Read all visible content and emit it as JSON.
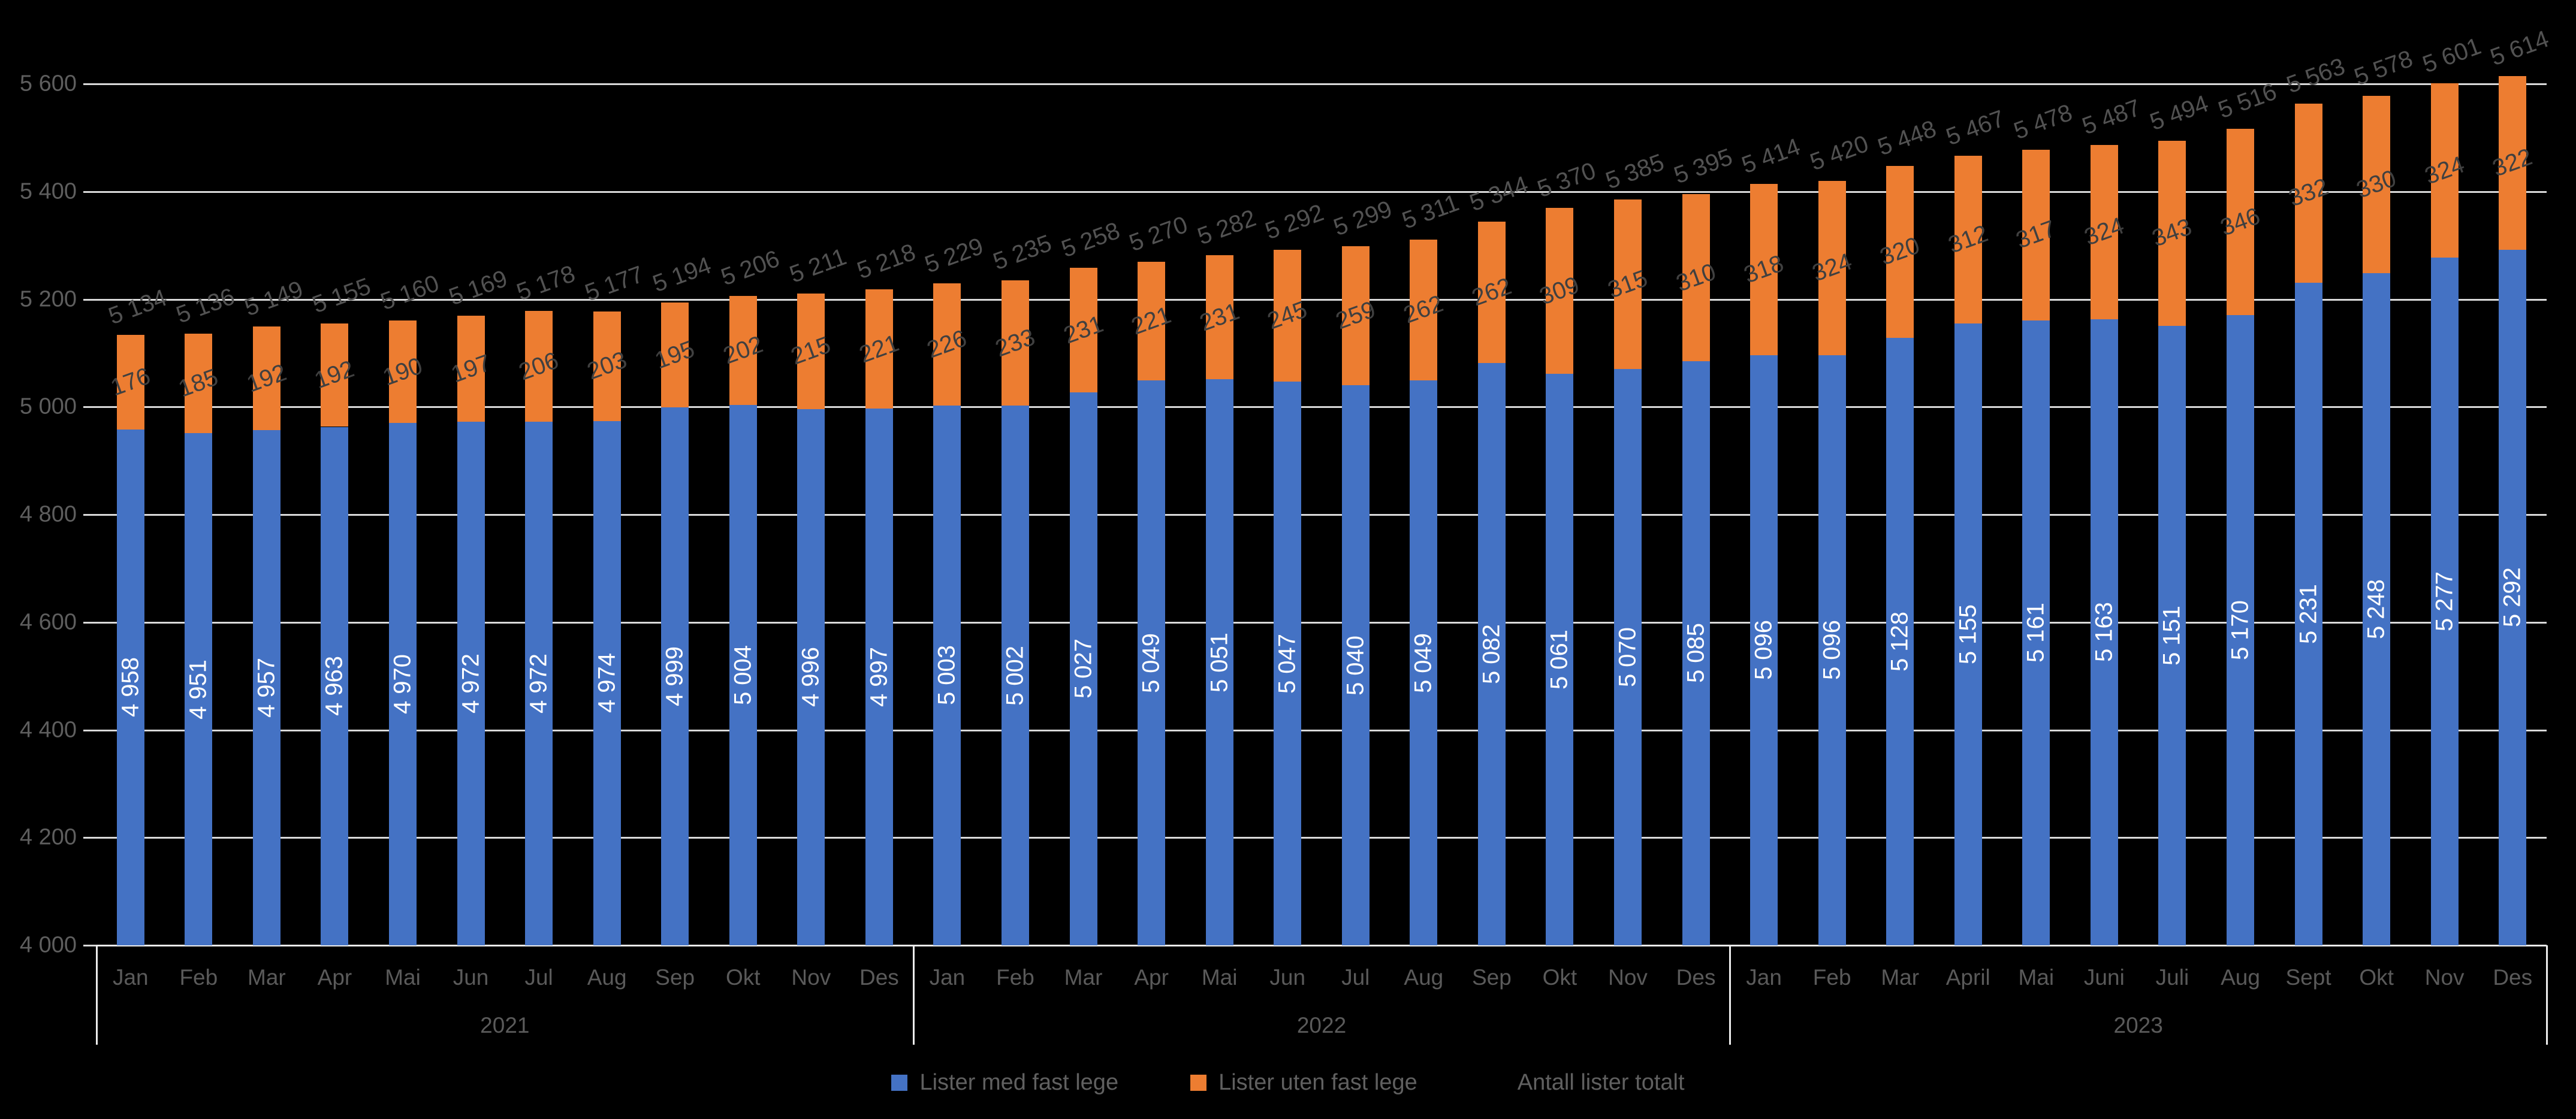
{
  "chart_data": {
    "type": "bar",
    "stacked": true,
    "grid": true,
    "legend_position": "bottom",
    "ylim": [
      4000,
      5600
    ],
    "ytick_step": 200,
    "ytick_labels": [
      "4 000",
      "4 200",
      "4 400",
      "4 600",
      "4 800",
      "5 000",
      "5 200",
      "5 400",
      "5 600"
    ],
    "groups": [
      {
        "year": "2021",
        "months": [
          "Jan",
          "Feb",
          "Mar",
          "Apr",
          "Mai",
          "Jun",
          "Jul",
          "Aug",
          "Sep",
          "Okt",
          "Nov",
          "Des"
        ]
      },
      {
        "year": "2022",
        "months": [
          "Jan",
          "Feb",
          "Mar",
          "Apr",
          "Mai",
          "Jun",
          "Jul",
          "Aug",
          "Sep",
          "Okt",
          "Nov",
          "Des"
        ]
      },
      {
        "year": "2023",
        "months": [
          "Jan",
          "Feb",
          "Mar",
          "April",
          "Mai",
          "Juni",
          "Juli",
          "Aug",
          "Sept",
          "Okt",
          "Nov",
          "Des"
        ]
      }
    ],
    "series": [
      {
        "name": "Lister med fast lege",
        "color": "#4472C4",
        "label_color": "#FFFFFF",
        "values": [
          4958,
          4951,
          4957,
          4963,
          4970,
          4972,
          4972,
          4974,
          4999,
          5004,
          4996,
          4997,
          5003,
          5002,
          5027,
          5049,
          5051,
          5047,
          5040,
          5049,
          5082,
          5061,
          5070,
          5085,
          5096,
          5096,
          5128,
          5155,
          5161,
          5163,
          5151,
          5170,
          5231,
          5248,
          5277,
          5292
        ]
      },
      {
        "name": "Lister uten fast lege",
        "color": "#ED7D31",
        "label_color": "#404040",
        "values": [
          176,
          185,
          192,
          192,
          190,
          197,
          206,
          203,
          195,
          202,
          215,
          221,
          226,
          233,
          231,
          221,
          231,
          245,
          259,
          262,
          262,
          309,
          315,
          310,
          318,
          324,
          320,
          312,
          317,
          324,
          343,
          346,
          332,
          330,
          324,
          322
        ]
      },
      {
        "name": "Antall lister totalt",
        "color": "none",
        "label_color": "#525252",
        "values": [
          5134,
          5136,
          5149,
          5155,
          5160,
          5169,
          5178,
          5177,
          5194,
          5206,
          5211,
          5218,
          5229,
          5235,
          5258,
          5270,
          5282,
          5292,
          5299,
          5311,
          5344,
          5370,
          5385,
          5395,
          5414,
          5420,
          5448,
          5467,
          5478,
          5487,
          5494,
          5516,
          5563,
          5578,
          5601,
          5614
        ]
      }
    ]
  },
  "colors": {
    "background": "#000000",
    "gridline": "#D9D9D9",
    "axis_line": "#ECECEC",
    "axis_text": "#5E5E5E",
    "category_text": "#5A5A5A",
    "total_label_text": "#525252",
    "orange_label_text": "#404040",
    "blue_label_text": "#FFFFFF",
    "legend_text": "#606060"
  }
}
